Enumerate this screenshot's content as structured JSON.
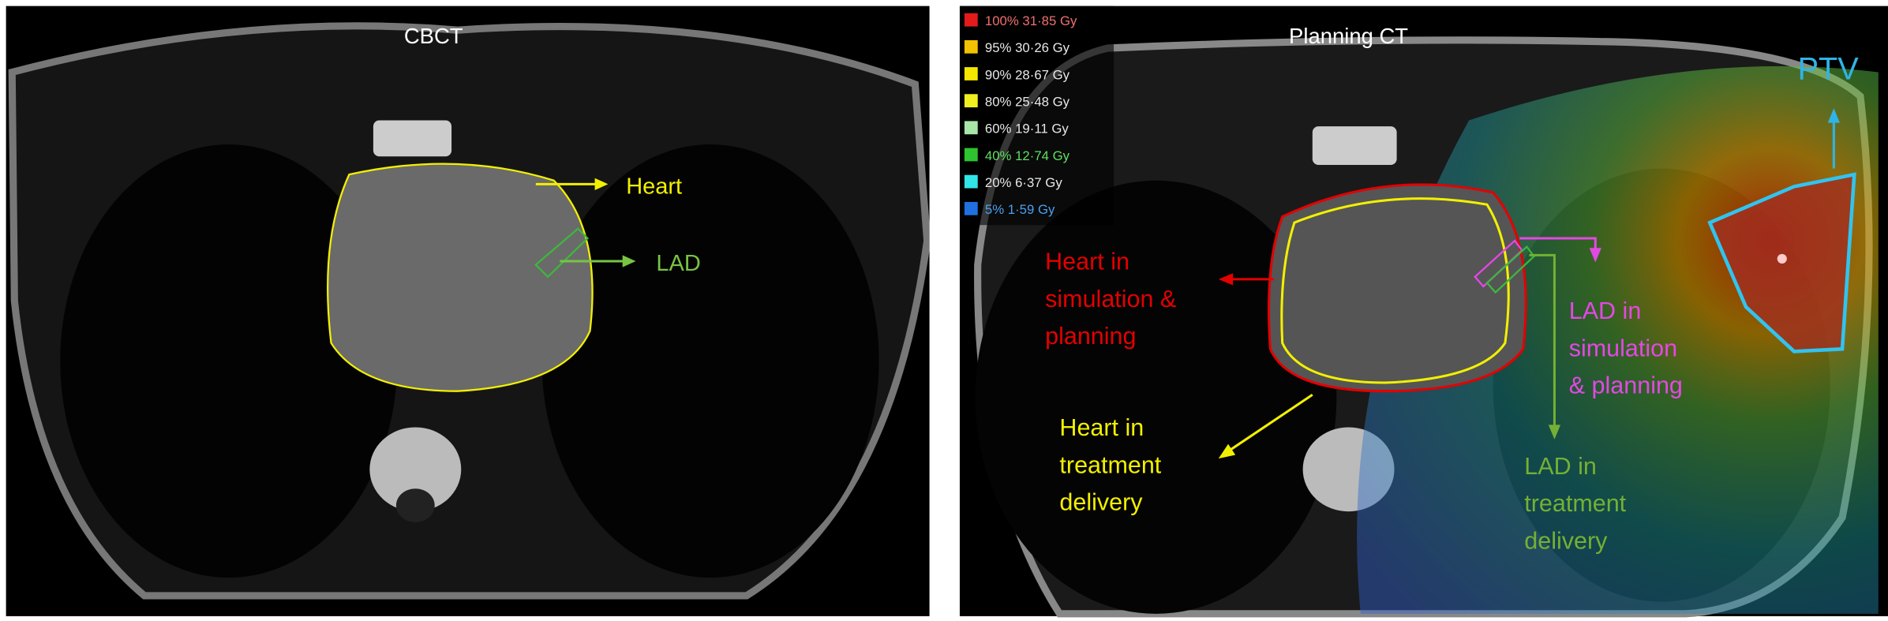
{
  "panels": [
    {
      "title": "CBCT",
      "labels": [
        {
          "text": "Heart",
          "color": "#f2f000"
        },
        {
          "text": "LAD",
          "color": "#78c444"
        }
      ]
    },
    {
      "title": "Planning CT",
      "dose_legend": [
        {
          "label": "100% 31·85 Gy",
          "color": "#e41b1b",
          "text_color": "#f07070"
        },
        {
          "label": "95% 30·26 Gy",
          "color": "#f2c200",
          "text_color": "#e8e8e8"
        },
        {
          "label": "90% 28·67 Gy",
          "color": "#f5e600",
          "text_color": "#e8e8e8"
        },
        {
          "label": "80% 25·48 Gy",
          "color": "#f0f020",
          "text_color": "#e8e8e8"
        },
        {
          "label": "60% 19·11 Gy",
          "color": "#a8e6a8",
          "text_color": "#e8e8e8"
        },
        {
          "label": "40% 12·74 Gy",
          "color": "#2ec42e",
          "text_color": "#5ee05e"
        },
        {
          "label": "20% 6·37 Gy",
          "color": "#30e6e6",
          "text_color": "#e8e8e8"
        },
        {
          "label": "5% 1·59 Gy",
          "color": "#2070e0",
          "text_color": "#4aa0f0"
        }
      ],
      "labels": [
        {
          "lines": [
            "Heart in",
            "simulation &",
            "planning"
          ],
          "color": "#e40000"
        },
        {
          "lines": [
            "Heart in",
            "treatment",
            "delivery"
          ],
          "color": "#f2f000"
        },
        {
          "lines": [
            "LAD in",
            "simulation",
            "& planning"
          ],
          "color": "#e448e4"
        },
        {
          "lines": [
            "LAD in",
            "treatment",
            "delivery"
          ],
          "color": "#74b034"
        },
        {
          "lines": [
            "PTV"
          ],
          "color": "#30b4e6"
        }
      ]
    }
  ]
}
